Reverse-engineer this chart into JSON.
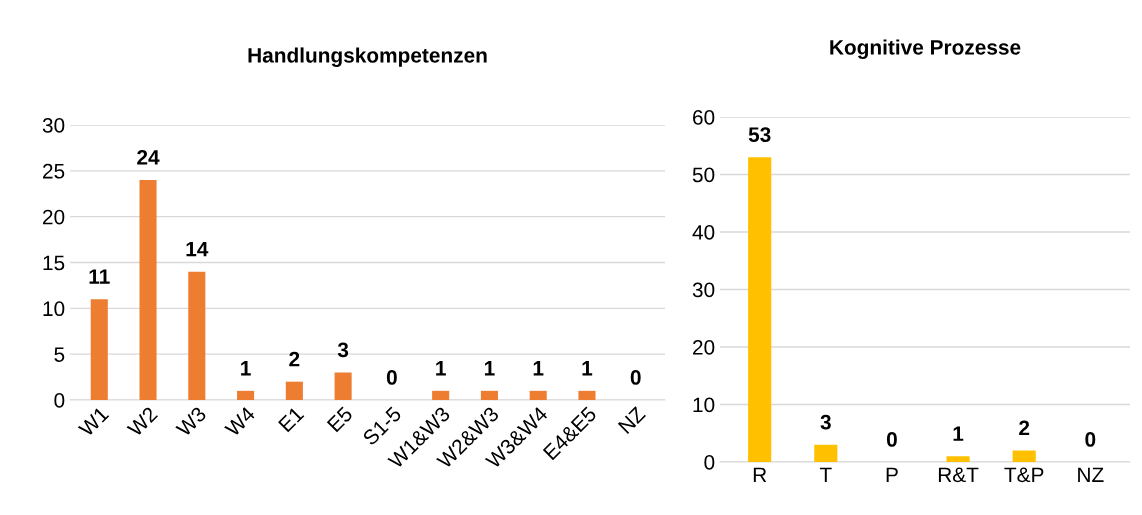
{
  "chart_data": [
    {
      "type": "bar",
      "title": "Handlungskompetenzen",
      "categories": [
        "W1",
        "W2",
        "W3",
        "W4",
        "E1",
        "E5",
        "S1-5",
        "W1&W3",
        "W2&W3",
        "W3&W4",
        "E4&E5",
        "NZ"
      ],
      "values": [
        11,
        24,
        14,
        1,
        2,
        3,
        0,
        1,
        1,
        1,
        1,
        0
      ],
      "color": "#ed7d31",
      "ylim": [
        0,
        30
      ],
      "yticks": [
        0,
        5,
        10,
        15,
        20,
        25,
        30
      ],
      "grid": "y",
      "data_labels": true,
      "legend": false
    },
    {
      "type": "bar",
      "title": "Kognitive Prozesse",
      "categories": [
        "R",
        "T",
        "P",
        "R&T",
        "T&P",
        "NZ"
      ],
      "values": [
        53,
        3,
        0,
        1,
        2,
        0
      ],
      "color": "#ffc000",
      "ylim": [
        0,
        60
      ],
      "yticks": [
        0,
        10,
        20,
        30,
        40,
        50,
        60
      ],
      "grid": "y",
      "data_labels": true,
      "legend": false
    }
  ]
}
